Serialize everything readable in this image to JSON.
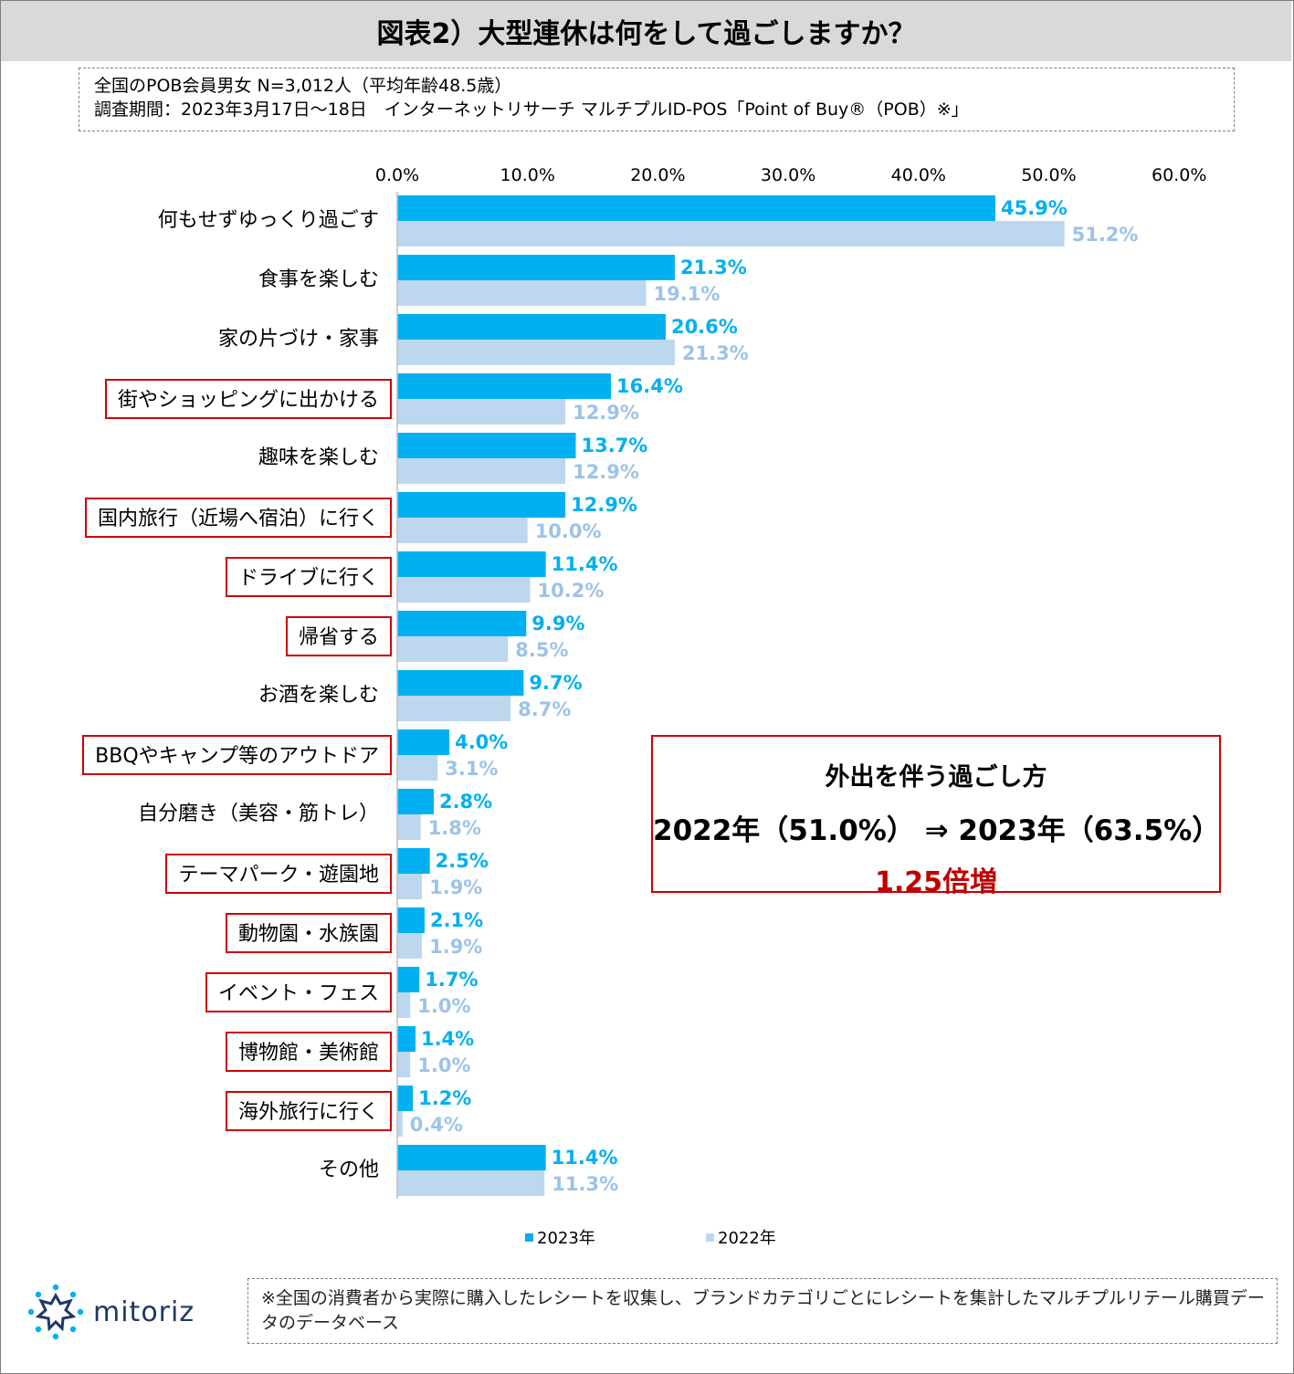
{
  "title": "図表2）大型連休は何をして過ごしますか？",
  "survey": {
    "line1": "全国のPOB会員男女 N=3,012人（平均年齢48.5歳）",
    "line2": "調査期間：2023年3月17日～18日　インターネットリサーチ マルチプルID-POS「Point of Buy®（POB）※」"
  },
  "chart_data": {
    "type": "bar",
    "orientation": "horizontal",
    "title": "",
    "xlim": [
      0,
      60
    ],
    "ticks": [
      "0.0%",
      "10.0%",
      "20.0%",
      "30.0%",
      "40.0%",
      "50.0%",
      "60.0%"
    ],
    "tick_values": [
      0,
      10,
      20,
      30,
      40,
      50,
      60
    ],
    "categories": [
      "何もせずゆっくり過ごす",
      "食事を楽しむ",
      "家の片づけ・家事",
      "街やショッピングに出かける",
      "趣味を楽しむ",
      "国内旅行（近場へ宿泊）に行く",
      "ドライブに行く",
      "帰省する",
      "お酒を楽しむ",
      "BBQやキャンプ等のアウトドア",
      "自分磨き（美容・筋トレ）",
      "テーマパーク・遊園地",
      "動物園・水族園",
      "イベント・フェス",
      "博物館・美術館",
      "海外旅行に行く",
      "その他"
    ],
    "highlighted": [
      false,
      false,
      false,
      true,
      false,
      true,
      true,
      true,
      false,
      true,
      false,
      true,
      true,
      true,
      true,
      true,
      false
    ],
    "series": [
      {
        "name": "2023年",
        "color": "#00b0f0",
        "values": [
          45.9,
          21.3,
          20.6,
          16.4,
          13.7,
          12.9,
          11.4,
          9.9,
          9.7,
          4.0,
          2.8,
          2.5,
          2.1,
          1.7,
          1.4,
          1.2,
          11.4
        ],
        "labels": [
          "45.9%",
          "21.3%",
          "20.6%",
          "16.4%",
          "13.7%",
          "12.9%",
          "11.4%",
          "9.9%",
          "9.7%",
          "4.0%",
          "2.8%",
          "2.5%",
          "2.1%",
          "1.7%",
          "1.4%",
          "1.2%",
          "11.4%"
        ]
      },
      {
        "name": "2022年",
        "color": "#bdd7ee",
        "label_color": "#9dc3e6",
        "values": [
          51.2,
          19.1,
          21.3,
          12.9,
          12.9,
          10.0,
          10.2,
          8.5,
          8.7,
          3.1,
          1.8,
          1.9,
          1.9,
          1.0,
          1.0,
          0.4,
          11.3
        ],
        "labels": [
          "51.2%",
          "19.1%",
          "21.3%",
          "12.9%",
          "12.9%",
          "10.0%",
          "10.2%",
          "8.5%",
          "8.7%",
          "3.1%",
          "1.8%",
          "1.9%",
          "1.9%",
          "1.0%",
          "1.0%",
          "0.4%",
          "11.3%"
        ]
      }
    ],
    "legend": {
      "placement": "bottom",
      "items": [
        "2023年",
        "2022年"
      ]
    }
  },
  "callout": {
    "line1": "外出を伴う過ごし方",
    "line2": "2022年（51.0%）  ⇒  2023年（63.5%）",
    "line3": "1.25倍増"
  },
  "logo": {
    "text": "mitoriz"
  },
  "footnote": "※全国の消費者から実際に購入したレシートを収集し、ブランドカテゴリごとにレシートを集計したマルチプルリテール購買データのデータベース"
}
